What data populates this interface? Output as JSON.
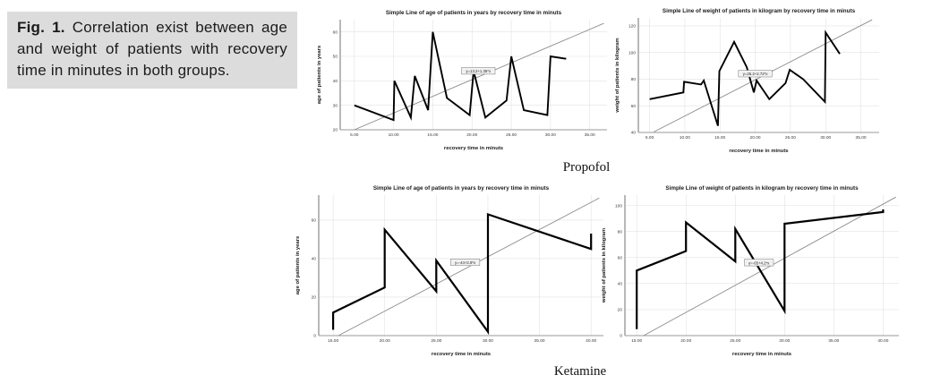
{
  "figure": {
    "caption_label": "Fig. 1.",
    "caption_text": " Correlation exist between age and weight of patients with recovery time in minutes in both groups.",
    "group_labels": {
      "top": "Propofol",
      "bottom": "Ketamine"
    }
  },
  "colors": {
    "caption_bg": "#dcdcdc",
    "grid": "#e2e2e2",
    "axis": "#9a9a9a",
    "tick": "#3a3a3a",
    "title": "#1a1a1a",
    "line": "#000000",
    "fit": "#8c8c8c",
    "annotation_bg": "#f2f2f2",
    "annotation_border": "#777777"
  },
  "chart_data": [
    {
      "type": "line",
      "group": "Propofol",
      "title": "Simple Line of age of patients in years by recovery time in minuts",
      "xlabel": "recovery time in minuts",
      "ylabel": "age of patients in years",
      "xlim": [
        3.2,
        37.2
      ],
      "ylim": [
        20,
        65
      ],
      "xticks": [
        5,
        10,
        15,
        20,
        25,
        30,
        35
      ],
      "x_tick_labels": [
        "5.00",
        "10.00",
        "15.00",
        "20.00",
        "25.00",
        "30.00",
        "35.00"
      ],
      "yticks": [
        20,
        30,
        40,
        50,
        60
      ],
      "grid": true,
      "line_width": 1.9,
      "series": [
        {
          "name": "age of patients",
          "points": [
            [
              5,
              30
            ],
            [
              10,
              24
            ],
            [
              10.1,
              40
            ],
            [
              12.2,
              25
            ],
            [
              12.7,
              42
            ],
            [
              14.4,
              28
            ],
            [
              15,
              60
            ],
            [
              16.8,
              33
            ],
            [
              19.7,
              26
            ],
            [
              20.2,
              44
            ],
            [
              21.7,
              25
            ],
            [
              24.4,
              32
            ],
            [
              25,
              50
            ],
            [
              26.6,
              28
            ],
            [
              29.6,
              26
            ],
            [
              30,
              50
            ],
            [
              32,
              49
            ]
          ]
        }
      ],
      "fit_line": {
        "x1": 5,
        "y1": 20,
        "x2": 36.8,
        "y2": 63.5
      },
      "annotation": {
        "x": 20.8,
        "y": 44,
        "text": "y=13.2+1.35*x"
      }
    },
    {
      "type": "line",
      "group": "Propofol",
      "title": "Simple Line of weight of patients in kilogram by recovery time in minuts",
      "xlabel": "recovery time in minuts",
      "ylabel": "weight of patients in kilogram",
      "xlim": [
        3.4,
        37.6
      ],
      "ylim": [
        40,
        126
      ],
      "xticks": [
        5,
        10,
        15,
        20,
        25,
        30,
        35
      ],
      "x_tick_labels": [
        "5.00",
        "10.00",
        "15.00",
        "20.00",
        "25.00",
        "30.00",
        "35.00"
      ],
      "yticks": [
        40,
        60,
        80,
        100,
        120
      ],
      "grid": true,
      "line_width": 1.9,
      "series": [
        {
          "name": "weight of patients",
          "points": [
            [
              5,
              65
            ],
            [
              9.8,
              70
            ],
            [
              9.9,
              78
            ],
            [
              12.3,
              76
            ],
            [
              12.7,
              79
            ],
            [
              14.7,
              45
            ],
            [
              14.9,
              86
            ],
            [
              17,
              108
            ],
            [
              18.8,
              89
            ],
            [
              19.8,
              70
            ],
            [
              20.2,
              79
            ],
            [
              22,
              65
            ],
            [
              24.3,
              77
            ],
            [
              24.9,
              87
            ],
            [
              26.8,
              80
            ],
            [
              29.9,
              63
            ],
            [
              30,
              115
            ],
            [
              32,
              99
            ]
          ]
        }
      ],
      "fit_line": {
        "x1": 5.6,
        "y1": 40.4,
        "x2": 36.6,
        "y2": 124.6
      },
      "annotation": {
        "x": 20,
        "y": 84,
        "text": "y=25.2+2.72*x"
      }
    },
    {
      "type": "line",
      "group": "Ketamine",
      "title": "Simple Line of age of patients in years by recovery time in minuts",
      "xlabel": "recovery time in minuts",
      "ylabel": "age of patients in years",
      "xlim": [
        13.6,
        41.2
      ],
      "ylim": [
        0,
        73
      ],
      "xticks": [
        15,
        20,
        25,
        30,
        35,
        40
      ],
      "x_tick_labels": [
        "15.00",
        "20.00",
        "25.00",
        "30.00",
        "35.00",
        "40.00"
      ],
      "yticks": [
        0,
        20,
        40,
        60
      ],
      "grid": true,
      "line_width": 2.2,
      "series": [
        {
          "name": "age of patients",
          "points": [
            [
              15,
              3
            ],
            [
              15,
              12
            ],
            [
              20,
              25
            ],
            [
              20,
              55
            ],
            [
              25,
              23
            ],
            [
              25,
              39
            ],
            [
              30,
              2
            ],
            [
              30,
              63
            ],
            [
              40,
              45
            ],
            [
              40,
              53
            ]
          ]
        }
      ],
      "fit_line": {
        "x1": 15.5,
        "y1": 0,
        "x2": 40.8,
        "y2": 71.5
      },
      "annotation": {
        "x": 27.8,
        "y": 38,
        "text": "y=-44+2.8*x"
      }
    },
    {
      "type": "line",
      "group": "Ketamine",
      "title": "Simple Line of weight of patients in kilogram by recovery time in minuts",
      "xlabel": "recovery time in minuts",
      "ylabel": "weight of patients in kilogram",
      "xlim": [
        13.8,
        41.6
      ],
      "ylim": [
        0,
        108
      ],
      "xticks": [
        15,
        20,
        25,
        30,
        35,
        40
      ],
      "x_tick_labels": [
        "15.00",
        "20.00",
        "25.00",
        "30.00",
        "35.00",
        "40.00"
      ],
      "yticks": [
        0,
        20,
        40,
        60,
        80,
        100
      ],
      "grid": true,
      "line_width": 2.2,
      "series": [
        {
          "name": "weight of patients",
          "points": [
            [
              15,
              5
            ],
            [
              15,
              50
            ],
            [
              20,
              65
            ],
            [
              20,
              87
            ],
            [
              25,
              57
            ],
            [
              25,
              82
            ],
            [
              30,
              19
            ],
            [
              30,
              86
            ],
            [
              40,
              95
            ],
            [
              40,
              97
            ]
          ]
        }
      ],
      "fit_line": {
        "x1": 15.7,
        "y1": 0,
        "x2": 41.3,
        "y2": 106.5
      },
      "annotation": {
        "x": 27.4,
        "y": 56,
        "text": "y=-65+4.2*x"
      }
    }
  ]
}
